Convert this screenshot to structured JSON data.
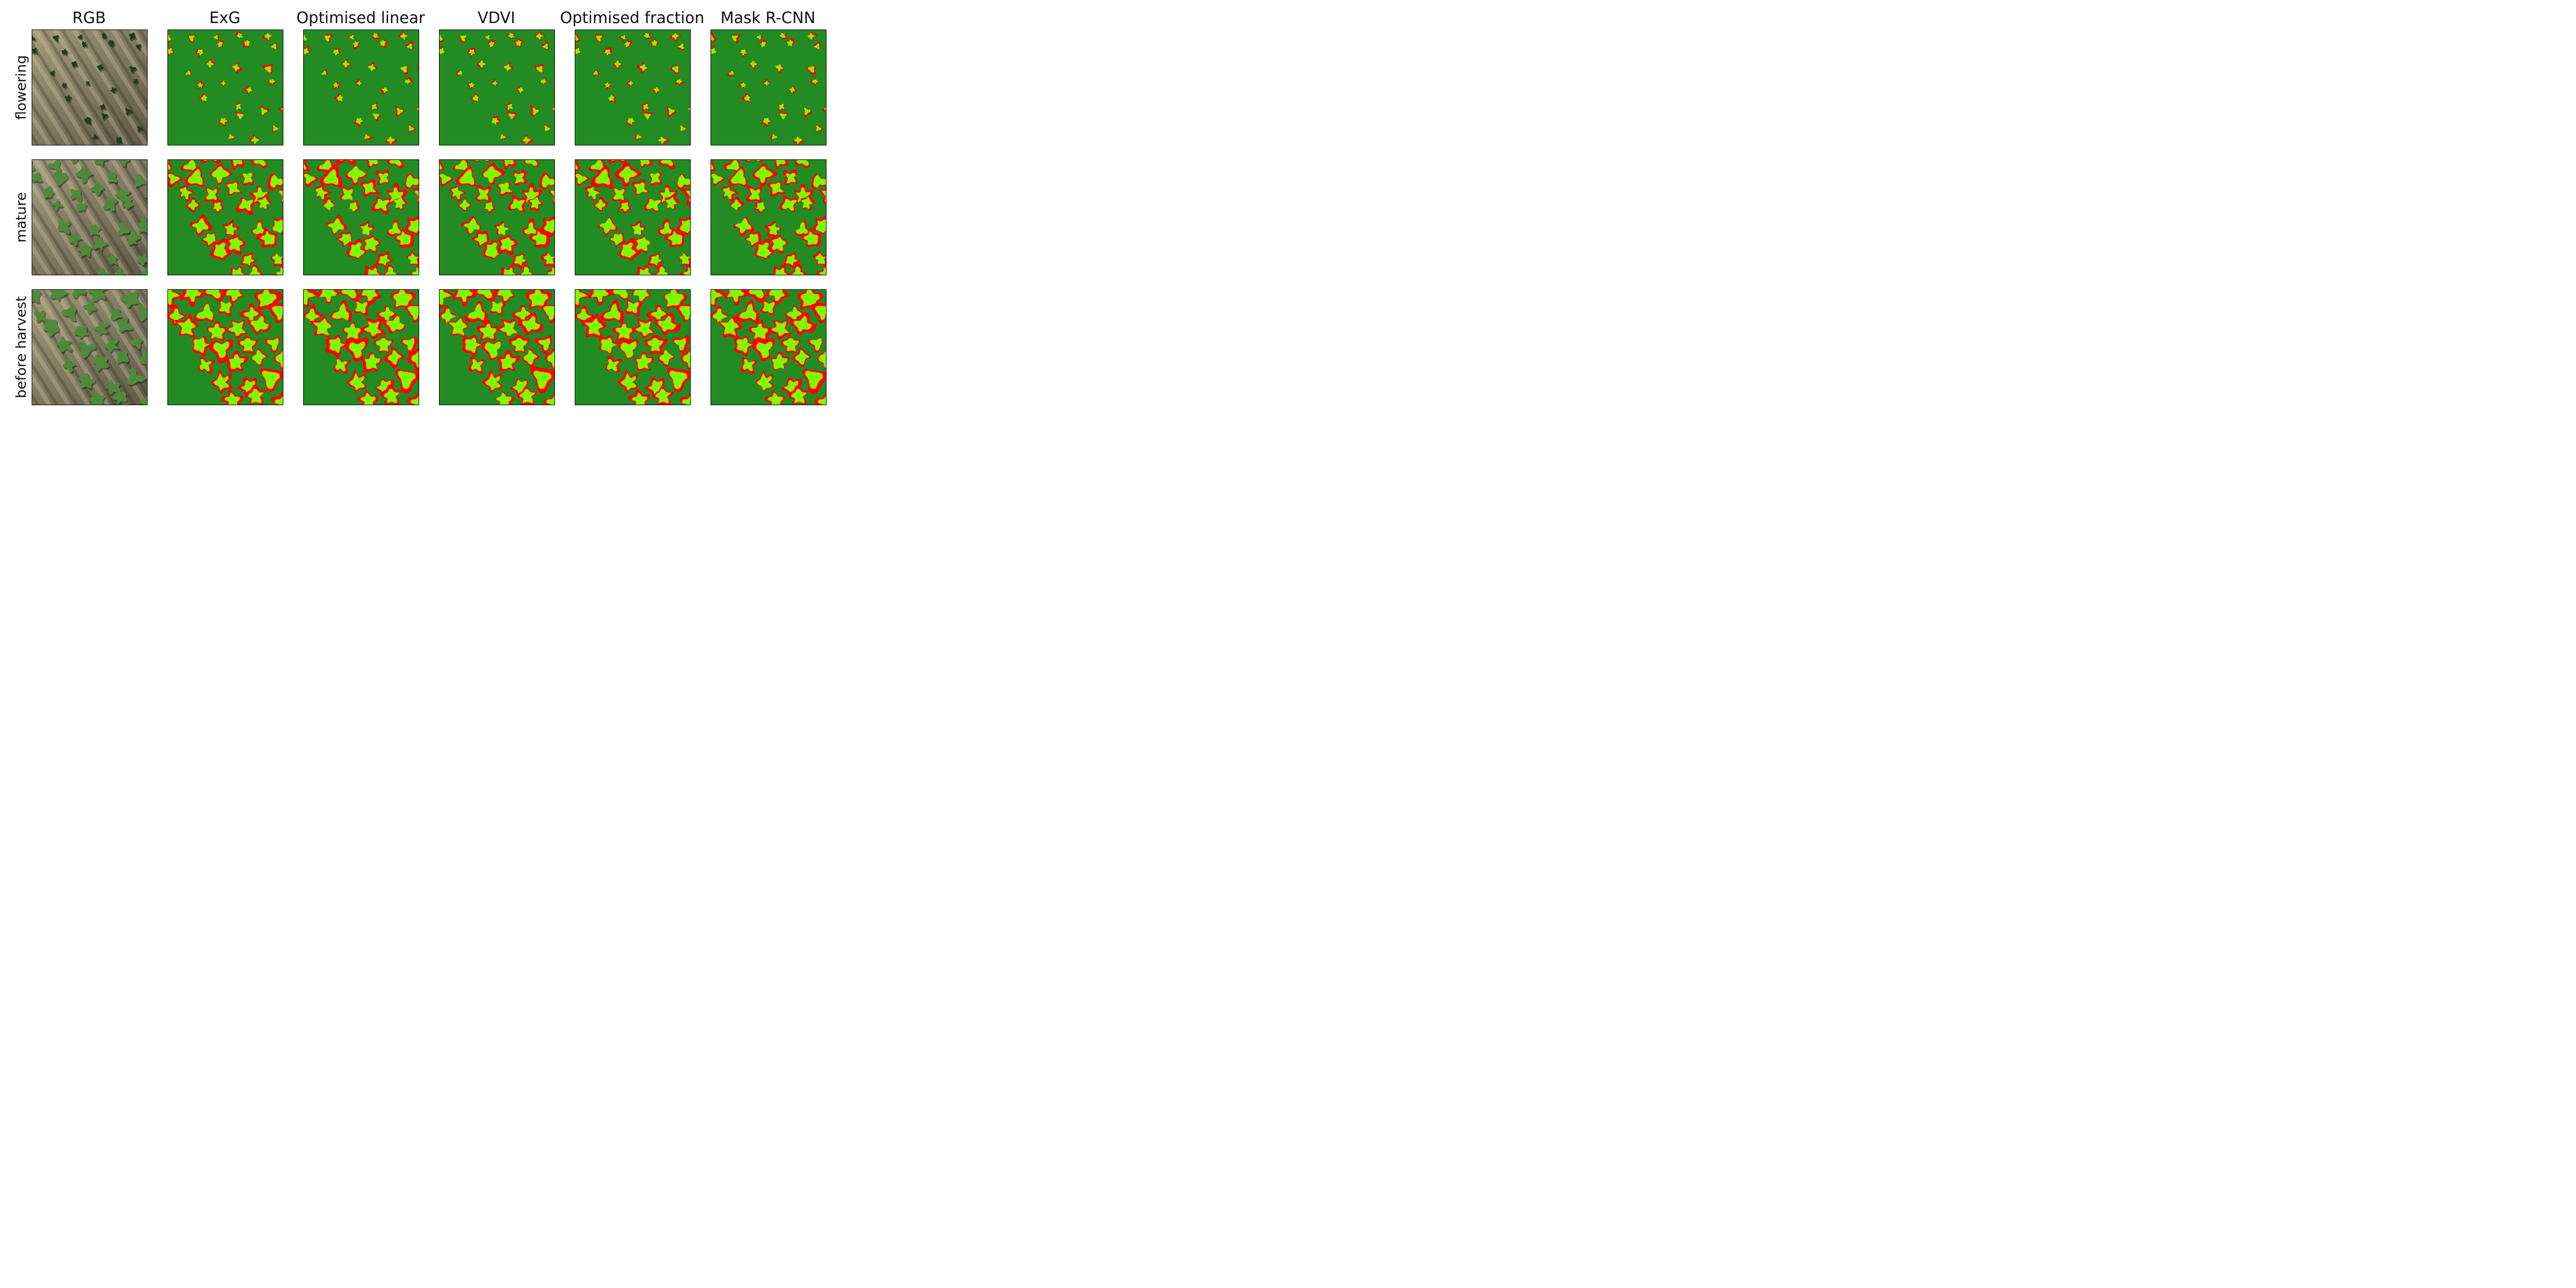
{
  "columns": [
    {
      "title": "RGB",
      "kind": "photo"
    },
    {
      "title": "ExG",
      "kind": "mask"
    },
    {
      "title": "Optimised linear",
      "kind": "mask"
    },
    {
      "title": "VDVI",
      "kind": "mask"
    },
    {
      "title": "Optimised fraction",
      "kind": "mask"
    },
    {
      "title": "Mask R-CNN",
      "kind": "mask"
    }
  ],
  "rows": [
    {
      "label": "flowering",
      "stage": 0
    },
    {
      "label": "mature",
      "stage": 1
    },
    {
      "label": "before harvest",
      "stage": 2
    }
  ],
  "colors": {
    "background_class": "#228b22",
    "plant_class": "#7cfc00",
    "false_positive": "#ff0000",
    "false_negative": "#ff8c00",
    "soil_light": "#a39a7a",
    "soil_dark": "#5e5846",
    "canopy_dark": "#1f3a1c",
    "canopy_light": "#4f8a3c"
  }
}
